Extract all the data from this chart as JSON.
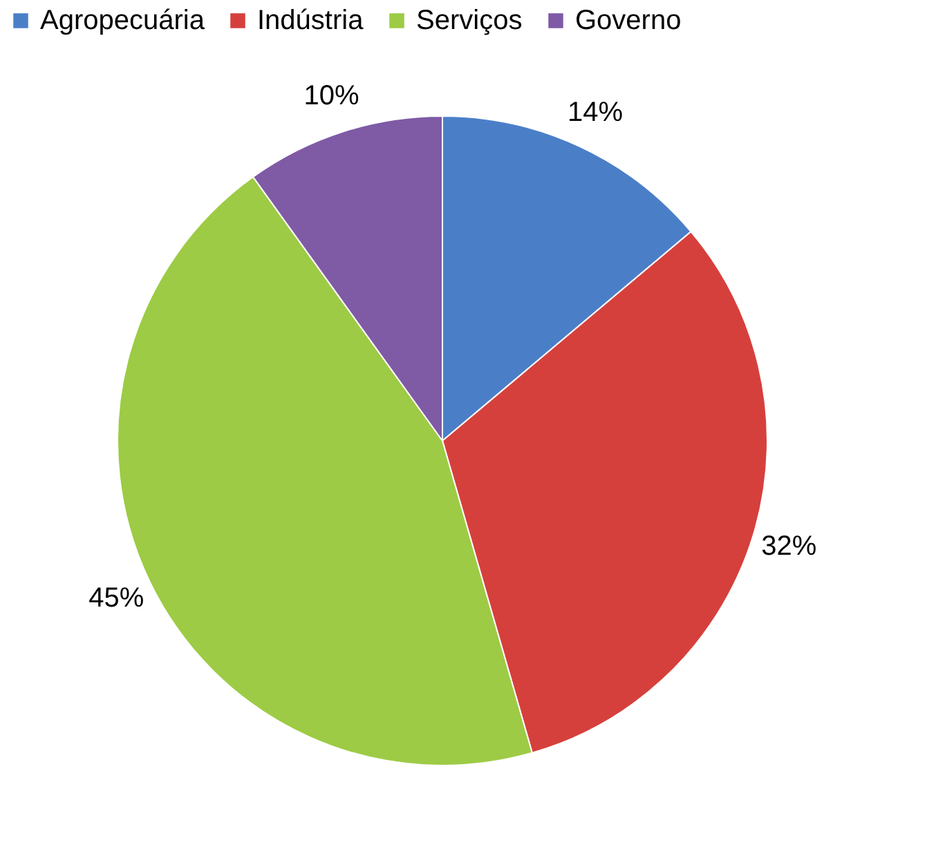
{
  "chart_data": {
    "type": "pie",
    "categories": [
      "Agropecuária",
      "Indústria",
      "Serviços",
      "Governo"
    ],
    "values": [
      14,
      32,
      45,
      10
    ],
    "colors": [
      "#4a7fc8",
      "#d6403c",
      "#9dcb45",
      "#7f5aa5"
    ],
    "value_labels": [
      "14%",
      "32%",
      "45%",
      "10%"
    ],
    "legend": "top"
  }
}
